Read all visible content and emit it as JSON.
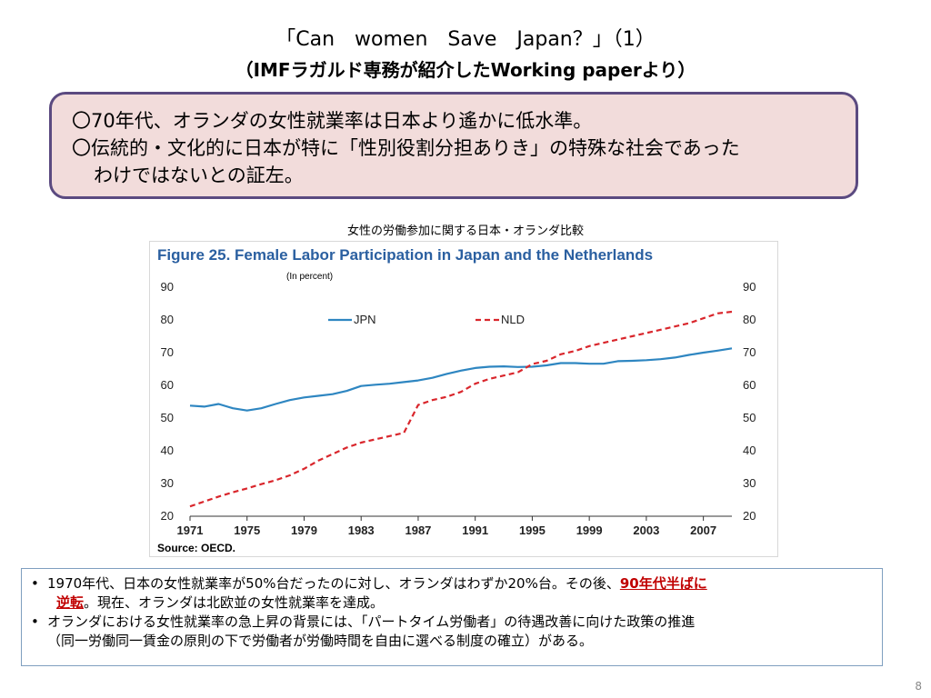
{
  "slide": {
    "title_line1": "「Can　women　Save　Japan？」（1）",
    "title_line2": "（IMFラガルド専務が紹介したWorking paperより）",
    "callout": {
      "line1": "〇70年代、オランダの女性就業率は日本より遙かに低水準。",
      "line2": "〇伝統的・文化的に日本が特に「性別役割分担ありき」の特殊な社会であった",
      "line3": "わけではないとの証左。"
    },
    "chart_caption": "女性の労働参加に関する日本・オランダ比較",
    "notes": {
      "bullet_marker": "•",
      "b1_part1": "1970年代、日本の女性就業率が50%台だったのに対し、オランダはわずか20%台。その後、",
      "b1_emph1": "90年代半ばに",
      "b1_emph2": "逆転",
      "b1_part2": "。現在、オランダは北欧並の女性就業率を達成。",
      "b2_line1": "オランダにおける女性就業率の急上昇の背景には、「パートタイム労働者」の待遇改善に向けた政策の推進",
      "b2_line2": "（同一労働同一賃金の原則の下で労働者が労働時間を自由に選べる制度の確立）がある。"
    },
    "page_number": "8",
    "colors": {
      "callout_bg": "#f2dcdb",
      "callout_border": "#5b4a80",
      "emph": "#c00000",
      "jpn": "#2e86c1",
      "nld": "#d9262c",
      "title_blue": "#2a5fa0"
    }
  },
  "chart_data": {
    "type": "line",
    "title": "Figure 25. Female Labor Participation in Japan and the Netherlands",
    "unit_note": "(In percent)",
    "source": "Source: OECD.",
    "x_ticks": [
      "1971",
      "1975",
      "1979",
      "1983",
      "1987",
      "1991",
      "1995",
      "1999",
      "2003",
      "2007"
    ],
    "y_ticks": [
      "20",
      "30",
      "40",
      "50",
      "60",
      "70",
      "80",
      "90"
    ],
    "ylim": [
      20,
      90
    ],
    "xlim": [
      1971,
      2009
    ],
    "grid": false,
    "legend": "top",
    "x": [
      1971,
      1972,
      1973,
      1974,
      1975,
      1976,
      1977,
      1978,
      1979,
      1980,
      1981,
      1982,
      1983,
      1984,
      1985,
      1986,
      1987,
      1988,
      1989,
      1990,
      1991,
      1992,
      1993,
      1994,
      1995,
      1996,
      1997,
      1998,
      1999,
      2000,
      2001,
      2002,
      2003,
      2004,
      2005,
      2006,
      2007,
      2008,
      2009
    ],
    "series": [
      {
        "name": "JPN",
        "style": "solid",
        "color": "#2e86c1",
        "values": [
          53.8,
          53.5,
          54.3,
          53.0,
          52.3,
          53.0,
          54.3,
          55.5,
          56.3,
          56.8,
          57.3,
          58.3,
          59.8,
          60.2,
          60.5,
          61.0,
          61.5,
          62.3,
          63.5,
          64.5,
          65.3,
          65.7,
          65.8,
          65.6,
          65.7,
          66.1,
          66.8,
          66.8,
          66.6,
          66.6,
          67.4,
          67.5,
          67.7,
          68.0,
          68.5,
          69.3,
          70.0,
          70.6,
          71.3
        ]
      },
      {
        "name": "NLD",
        "style": "dashed",
        "color": "#d9262c",
        "values": [
          23.0,
          24.5,
          26.0,
          27.3,
          28.5,
          29.8,
          31.0,
          32.5,
          34.5,
          37.0,
          39.0,
          41.0,
          42.5,
          43.5,
          44.5,
          45.5,
          54.0,
          55.5,
          56.5,
          58.0,
          60.5,
          62.0,
          63.0,
          64.0,
          66.5,
          67.5,
          69.5,
          70.5,
          72.0,
          73.0,
          74.0,
          75.0,
          76.0,
          77.0,
          78.0,
          79.0,
          80.5,
          82.0,
          82.5
        ]
      }
    ]
  }
}
